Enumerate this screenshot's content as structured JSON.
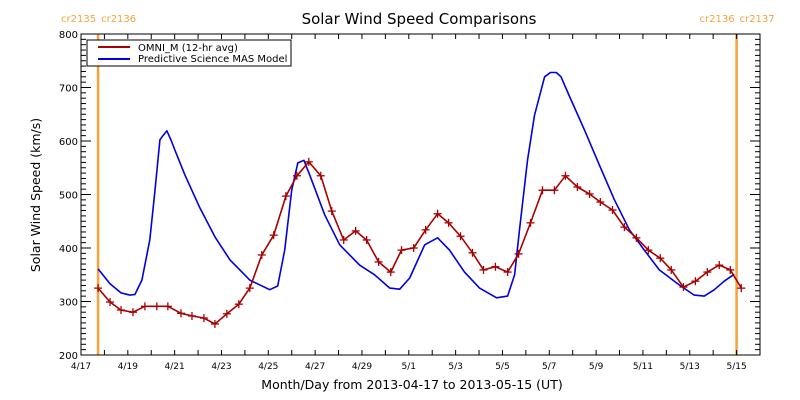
{
  "chart_data": {
    "type": "line",
    "title": "Solar Wind Speed Comparisons",
    "xlabel": "Month/Day from 2013-04-17 to 2013-05-15 (UT)",
    "ylabel": "Solar Wind Speed (km/s)",
    "x_units": "days since 2013-04-17 00:00 UT",
    "xlim": [
      0,
      29
    ],
    "ylim": [
      200,
      800
    ],
    "yticks": [
      200,
      300,
      400,
      500,
      600,
      700,
      800
    ],
    "ytick_labels": [
      "200",
      "300",
      "400",
      "500",
      "600",
      "700",
      "800"
    ],
    "xticks": [
      0,
      2,
      4,
      6,
      8,
      10,
      12,
      14,
      16,
      18,
      20,
      22,
      24,
      26,
      28
    ],
    "xtick_labels": [
      "4/17",
      "4/19",
      "4/21",
      "4/23",
      "4/25",
      "4/27",
      "4/29",
      "5/1",
      "5/3",
      "5/5",
      "5/7",
      "5/9",
      "5/11",
      "5/13",
      "5/15"
    ],
    "legend": {
      "position": "top-left",
      "entries": [
        "OMNI_M (12-hr avg)",
        "Predictive Science MAS Model"
      ]
    },
    "carrington_markers": [
      {
        "x": 0.73,
        "label_left": "cr2135",
        "label_right": "cr2136"
      },
      {
        "x": 28.0,
        "label_left": "cr2136",
        "label_right": "cr2137"
      }
    ],
    "series": [
      {
        "name": "OMNI_M (12-hr avg)",
        "color": "#a80000",
        "marker": "plus",
        "x": [
          0.73,
          1.24,
          1.71,
          2.22,
          2.73,
          3.24,
          3.71,
          4.27,
          4.74,
          5.25,
          5.72,
          6.23,
          6.74,
          7.21,
          7.72,
          8.23,
          8.75,
          9.22,
          9.73,
          10.24,
          10.71,
          11.22,
          11.73,
          12.2,
          12.71,
          13.23,
          13.69,
          14.21,
          14.72,
          15.23,
          15.7,
          16.21,
          16.72,
          17.19,
          17.7,
          18.22,
          18.69,
          19.2,
          19.71,
          20.22,
          20.69,
          21.2,
          21.72,
          22.18,
          22.7,
          23.21,
          23.72,
          24.23,
          24.74,
          25.21,
          25.73,
          26.24,
          26.75,
          27.26,
          27.73,
          28.2
        ],
        "y": [
          325,
          299,
          284,
          280,
          291,
          291,
          291,
          278,
          273,
          269,
          258,
          277,
          295,
          325,
          387,
          424,
          497,
          535,
          561,
          535,
          469,
          415,
          432,
          415,
          374,
          355,
          396,
          400,
          434,
          464,
          447,
          422,
          391,
          359,
          365,
          355,
          389,
          447,
          508,
          508,
          535,
          514,
          501,
          486,
          471,
          439,
          419,
          396,
          381,
          359,
          327,
          338,
          355,
          368,
          359,
          325
        ]
      },
      {
        "name": "Predictive Science MAS Model",
        "color": "#0000e0",
        "marker": "none",
        "x": [
          0.73,
          1.24,
          1.71,
          2.09,
          2.3,
          2.6,
          2.94,
          3.16,
          3.37,
          3.5,
          3.67,
          3.86,
          4.01,
          4.44,
          5.08,
          5.72,
          6.36,
          7.21,
          8.06,
          8.4,
          8.7,
          9.0,
          9.26,
          9.52,
          9.77,
          10.41,
          11.05,
          11.9,
          12.54,
          13.19,
          13.61,
          14.04,
          14.68,
          15.23,
          15.74,
          16.38,
          17.02,
          17.75,
          18.22,
          18.52,
          18.73,
          19.07,
          19.37,
          19.8,
          20.05,
          20.3,
          20.5,
          20.84,
          21.5,
          22.14,
          22.78,
          23.42,
          24.06,
          24.7,
          25.55,
          26.19,
          26.62,
          27.05,
          27.47,
          27.9
        ],
        "y": [
          361,
          333,
          316,
          312,
          313,
          340,
          415,
          508,
          602,
          610,
          619,
          600,
          583,
          536,
          475,
          421,
          378,
          340,
          322,
          329,
          396,
          508,
          559,
          564,
          536,
          462,
          406,
          368,
          350,
          325,
          323,
          344,
          406,
          419,
          396,
          355,
          325,
          307,
          310,
          350,
          434,
          564,
          648,
          720,
          728,
          728,
          720,
          686,
          621,
          555,
          490,
          434,
          396,
          359,
          331,
          312,
          310,
          322,
          338,
          351
        ]
      }
    ]
  }
}
